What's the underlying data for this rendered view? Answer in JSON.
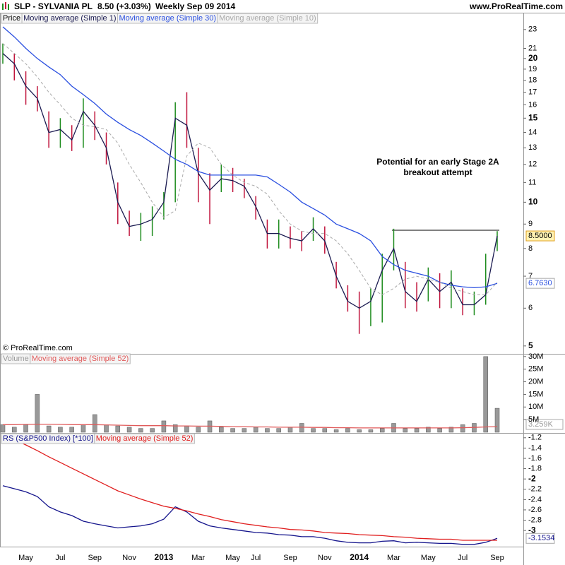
{
  "header": {
    "symbol": "SLP - SYLVANIA PL",
    "quote": "8.50 (+3.03%)",
    "period": "Weekly  Sep 09 2014",
    "site": "www.ProRealTime.com"
  },
  "chart_data": [
    {
      "type": "ohlc",
      "log": true,
      "watermark": "© ProRealTime.com",
      "annotation": [
        "Potential for an early Stage 2A",
        "breakout attempt"
      ],
      "ylim": [
        4.83,
        23.7
      ],
      "yticks": [
        5,
        6,
        7,
        8,
        9,
        10,
        11,
        12,
        13,
        14,
        15,
        16,
        17,
        18,
        19,
        20,
        21,
        23
      ],
      "series": [
        {
          "name": "Price",
          "color": "#000000",
          "up_color": "#1e8c1e",
          "down_color": "#c0143c",
          "high": [
            21.5,
            20.5,
            18.8,
            17.5,
            15.5,
            15,
            14.5,
            16.5,
            15.5,
            14,
            11,
            9.6,
            9.5,
            9.8,
            10.5,
            16.2,
            17,
            13,
            11.5,
            12,
            11.8,
            11.2,
            10.3,
            9.2,
            9.2,
            8.9,
            8.7,
            9.3,
            8.9,
            7.5,
            6.7,
            6.5,
            6.6,
            7.8,
            8.8,
            7.5,
            6.8,
            7.3,
            7.1,
            7.2,
            6.6,
            6.5,
            7.8,
            8.7
          ],
          "low": [
            19.5,
            18,
            16,
            15.5,
            13,
            13,
            12.8,
            13,
            13.5,
            12,
            9,
            8.5,
            8.3,
            8.5,
            9.2,
            10,
            13,
            10,
            9,
            10.5,
            10.5,
            10.2,
            9.2,
            8,
            8,
            8,
            7.9,
            8.3,
            7.8,
            6.6,
            5.9,
            5.3,
            5.5,
            5.6,
            7.2,
            6,
            5.9,
            6.2,
            6,
            6,
            5.8,
            5.8,
            6.1,
            7.9
          ]
        },
        {
          "name": "Moving average (Simple 1)",
          "color": "#1a1a50",
          "last_label": "8.5000",
          "values": [
            20.5,
            19.5,
            17.5,
            16.5,
            14,
            14.2,
            13.5,
            15.5,
            14.5,
            13,
            10,
            8.9,
            9,
            9.2,
            10,
            15,
            14.5,
            11.5,
            10.6,
            11.2,
            11.1,
            10.8,
            9.8,
            8.6,
            8.6,
            8.4,
            8.3,
            8.8,
            8.3,
            7,
            6.2,
            6,
            6.2,
            7.2,
            8,
            6.5,
            6.2,
            6.9,
            6.5,
            6.8,
            6.1,
            6.1,
            6.4,
            8.5
          ]
        },
        {
          "name": "Moving average (Simple 30)",
          "color": "#2a4fe0",
          "last_label": "6.7630",
          "values": [
            23.3,
            22.2,
            21,
            20,
            19.2,
            18.5,
            17.5,
            16.8,
            16.1,
            15.3,
            14.7,
            14.2,
            13.8,
            13.3,
            12.8,
            12.3,
            12,
            11.6,
            11.4,
            11.4,
            11.4,
            11.4,
            11.4,
            11.3,
            10.9,
            10.5,
            10,
            9.7,
            9.4,
            9,
            8.8,
            8.6,
            8.3,
            7.7,
            7.4,
            7.2,
            7.1,
            7,
            6.8,
            6.7,
            6.65,
            6.62,
            6.65,
            6.763
          ]
        },
        {
          "name": "Moving average (Simple 10)",
          "color": "#aaaaaa",
          "dash": true,
          "values": [
            21.5,
            20.5,
            19.5,
            18.3,
            17,
            16,
            15,
            14.5,
            14.4,
            14.2,
            13.3,
            12,
            11,
            10,
            9.3,
            9.6,
            12.5,
            13.3,
            13,
            12,
            11.4,
            11,
            10.8,
            10.4,
            9.6,
            9,
            8.7,
            8.6,
            8.6,
            8.3,
            7.8,
            7.2,
            6.6,
            6.4,
            6.6,
            6.9,
            7,
            6.9,
            6.8,
            6.6,
            6.5,
            6.4,
            6.4,
            6.8
          ]
        }
      ]
    },
    {
      "type": "bar",
      "readout": "3.259K",
      "ylim": [
        0,
        30800000
      ],
      "yticks": [
        {
          "value": 5000000,
          "label": "5M"
        },
        {
          "value": 10000000,
          "label": "10M"
        },
        {
          "value": 15000000,
          "label": "15M"
        },
        {
          "value": 20000000,
          "label": "20M"
        },
        {
          "value": 25000000,
          "label": "25M"
        },
        {
          "value": 30000000,
          "label": "30M"
        }
      ],
      "series": [
        {
          "name": "Volume",
          "color": "#999999",
          "values": [
            3000000,
            2000000,
            3000000,
            15000000,
            2500000,
            2000000,
            2000000,
            3000000,
            7000000,
            3000000,
            2500000,
            2000000,
            1500000,
            1500000,
            4500000,
            3000000,
            2500000,
            2000000,
            4500000,
            2000000,
            1500000,
            1500000,
            2000000,
            1500000,
            1500000,
            2000000,
            3500000,
            1500000,
            1500000,
            1000000,
            1500000,
            1000000,
            1000000,
            1500000,
            3500000,
            1500000,
            1500000,
            2000000,
            1500000,
            2000000,
            3000000,
            3500000,
            30000000,
            9500000
          ]
        },
        {
          "name": "Moving average (Simple 52)",
          "color": "#e05a5a",
          "values": [
            3000000,
            3000000,
            3100000,
            3200000,
            3200000,
            3100000,
            3000000,
            3000000,
            3000000,
            2900000,
            2800000,
            2700000,
            2600000,
            2600000,
            2600000,
            2500000,
            2500000,
            2400000,
            2400000,
            2300000,
            2200000,
            2200000,
            2100000,
            2100000,
            2000000,
            2000000,
            2000000,
            1900000,
            1900000,
            1800000,
            1800000,
            1700000,
            1700000,
            1700000,
            1700000,
            1700000,
            1700000,
            1700000,
            1700000,
            1700000,
            1800000,
            1900000,
            2100000,
            2200000
          ]
        }
      ]
    },
    {
      "type": "line",
      "categories": [
        null,
        null,
        "May",
        null,
        null,
        "Jul",
        null,
        null,
        "Sep",
        null,
        null,
        "Nov",
        null,
        null,
        "2013",
        null,
        null,
        "Mar",
        null,
        null,
        "May",
        null,
        "Jul",
        null,
        null,
        "Sep",
        null,
        null,
        "Nov",
        null,
        null,
        "2014",
        null,
        null,
        "Mar",
        null,
        null,
        "May",
        null,
        null,
        "Jul",
        null,
        null,
        "Sep"
      ],
      "ylim": [
        -3.3,
        -1.12
      ],
      "yticks": [
        -1.2,
        -1.4,
        -1.6,
        -1.8,
        -2,
        -2.2,
        -2.4,
        -2.6,
        -2.8,
        -3
      ],
      "series": [
        {
          "name": "RS (S&P500 Index) [*100]",
          "color": "#14148c",
          "last_label": "-3.1534",
          "values": [
            -2.13,
            -2.19,
            -2.25,
            -2.34,
            -2.54,
            -2.64,
            -2.71,
            -2.82,
            -2.87,
            -2.91,
            -2.95,
            -2.93,
            -2.91,
            -2.87,
            -2.78,
            -2.54,
            -2.64,
            -2.82,
            -2.91,
            -2.95,
            -2.98,
            -3.01,
            -3.04,
            -3.05,
            -3.08,
            -3.09,
            -3.12,
            -3.12,
            -3.15,
            -3.2,
            -3.23,
            -3.24,
            -3.24,
            -3.21,
            -3.2,
            -3.24,
            -3.23,
            -3.24,
            -3.25,
            -3.25,
            -3.27,
            -3.27,
            -3.23,
            -3.1534
          ]
        },
        {
          "name": "Moving average (Simple 52)",
          "color": "#e01e1e",
          "values": [
            -1.15,
            -1.23,
            -1.34,
            -1.45,
            -1.57,
            -1.68,
            -1.79,
            -1.9,
            -2.01,
            -2.12,
            -2.23,
            -2.31,
            -2.39,
            -2.46,
            -2.53,
            -2.57,
            -2.62,
            -2.68,
            -2.73,
            -2.79,
            -2.83,
            -2.87,
            -2.9,
            -2.93,
            -2.95,
            -2.98,
            -2.99,
            -3.01,
            -3.04,
            -3.05,
            -3.06,
            -3.08,
            -3.09,
            -3.1,
            -3.12,
            -3.13,
            -3.15,
            -3.16,
            -3.17,
            -3.17,
            -3.19,
            -3.19,
            -3.19,
            -3.19
          ]
        }
      ]
    }
  ]
}
